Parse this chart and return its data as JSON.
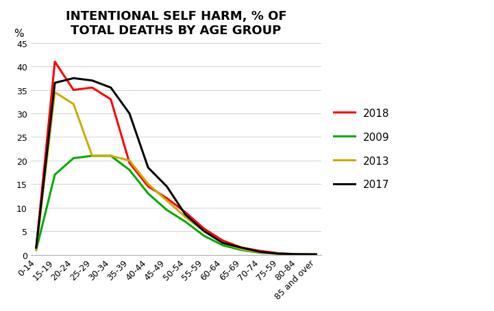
{
  "title": "INTENTIONAL SELF HARM, % OF\nTOTAL DEATHS BY AGE GROUP",
  "ylabel": "%",
  "categories": [
    "0-14",
    "15-19",
    "20-24",
    "25-29",
    "30-34",
    "35-39",
    "40-44",
    "45-49",
    "50-54",
    "55-59",
    "60-64",
    "65-69",
    "70-74",
    "75-59",
    "80-84",
    "85 and over"
  ],
  "series": {
    "2018": [
      1.5,
      41.0,
      35.0,
      35.5,
      33.0,
      19.5,
      14.5,
      12.0,
      9.0,
      5.5,
      3.0,
      1.5,
      0.8,
      0.3,
      0.1,
      0.05
    ],
    "2009": [
      1.0,
      17.0,
      20.5,
      21.0,
      21.0,
      18.0,
      13.0,
      9.5,
      7.0,
      4.0,
      2.0,
      1.0,
      0.4,
      0.2,
      0.1,
      0.05
    ],
    "2013": [
      1.0,
      34.5,
      32.0,
      21.0,
      21.0,
      20.0,
      15.0,
      11.5,
      8.0,
      5.0,
      2.5,
      1.2,
      0.5,
      0.2,
      0.1,
      0.05
    ],
    "2017": [
      1.5,
      36.5,
      37.5,
      37.0,
      35.5,
      30.0,
      18.5,
      14.5,
      8.5,
      5.0,
      2.5,
      1.5,
      0.6,
      0.2,
      0.1,
      0.05
    ]
  },
  "colors": {
    "2018": "#FF0000",
    "2009": "#00AA00",
    "2013": "#CCAA00",
    "2017": "#000000"
  },
  "ylim": [
    0,
    45
  ],
  "yticks": [
    0,
    5,
    10,
    15,
    20,
    25,
    30,
    35,
    40,
    45
  ],
  "legend_order": [
    "2018",
    "2009",
    "2013",
    "2017"
  ],
  "background_color": "#FFFFFF",
  "linewidth": 2.2
}
